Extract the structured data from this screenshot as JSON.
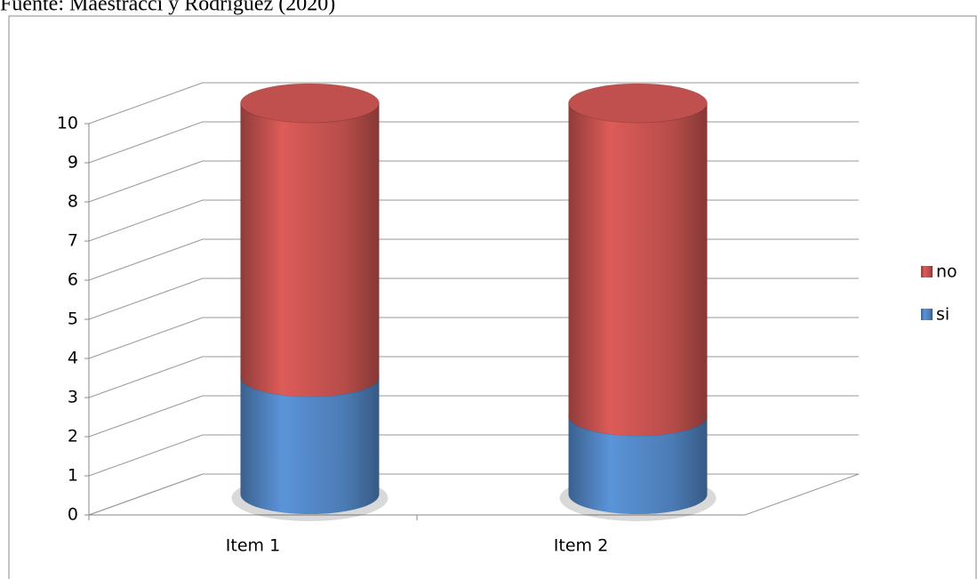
{
  "chart_data": {
    "type": "bar",
    "stacked": true,
    "title": "Fuente: Maestracci y Rodríguez (2020)",
    "categories": [
      "Item 1",
      "Item 2"
    ],
    "series": [
      {
        "name": "si",
        "color": "#4f81bd",
        "values": [
          3,
          2
        ]
      },
      {
        "name": "no",
        "color": "#c0504d",
        "values": [
          7,
          8
        ]
      }
    ],
    "ylim": [
      0,
      10
    ],
    "yticks": [
      0,
      1,
      2,
      3,
      4,
      5,
      6,
      7,
      8,
      9,
      10
    ],
    "grid": true,
    "legend": "right"
  }
}
